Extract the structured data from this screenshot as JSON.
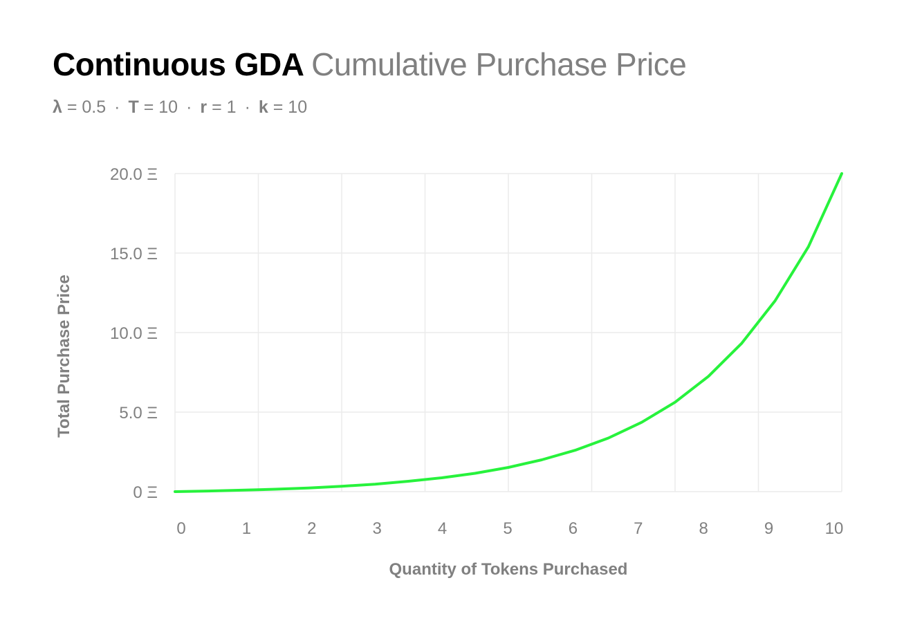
{
  "title": {
    "main": "Continuous GDA",
    "secondary": "Cumulative Purchase Price"
  },
  "params": [
    {
      "symbol": "λ",
      "value": "= 0.5"
    },
    {
      "symbol": "T",
      "value": "= 10"
    },
    {
      "symbol": "r",
      "value": "= 1"
    },
    {
      "symbol": "k",
      "value": "= 10"
    }
  ],
  "separator": "·",
  "chart_data": {
    "type": "line",
    "title": "Continuous GDA Cumulative Purchase Price",
    "xlabel": "Quantity of Tokens Purchased",
    "ylabel": "Total Purchase Price",
    "xlim": [
      0,
      10
    ],
    "ylim": [
      0,
      20
    ],
    "xticks": [
      "0",
      "1",
      "2",
      "3",
      "4",
      "5",
      "6",
      "7",
      "8",
      "9",
      "10"
    ],
    "yticks": [
      {
        "value": 0,
        "label": "0 Ξ"
      },
      {
        "value": 5,
        "label": "5.0 Ξ"
      },
      {
        "value": 10,
        "label": "10.0 Ξ"
      },
      {
        "value": 15,
        "label": "15.0 Ξ"
      },
      {
        "value": 20,
        "label": "20.0 Ξ"
      }
    ],
    "grid": true,
    "series": [
      {
        "name": "Cumulative Purchase Price",
        "color": "#27f23c",
        "x": [
          0,
          0.5,
          1,
          1.5,
          2,
          2.5,
          3,
          3.5,
          4,
          4.5,
          5,
          5.5,
          6,
          6.5,
          7,
          7.5,
          8,
          8.5,
          9,
          9.5,
          10
        ],
        "y": [
          0,
          0.04,
          0.09,
          0.15,
          0.23,
          0.34,
          0.47,
          0.65,
          0.87,
          1.15,
          1.52,
          2.0,
          2.6,
          3.37,
          4.36,
          5.62,
          7.25,
          9.33,
          12.0,
          15.4,
          20.0
        ]
      }
    ]
  }
}
